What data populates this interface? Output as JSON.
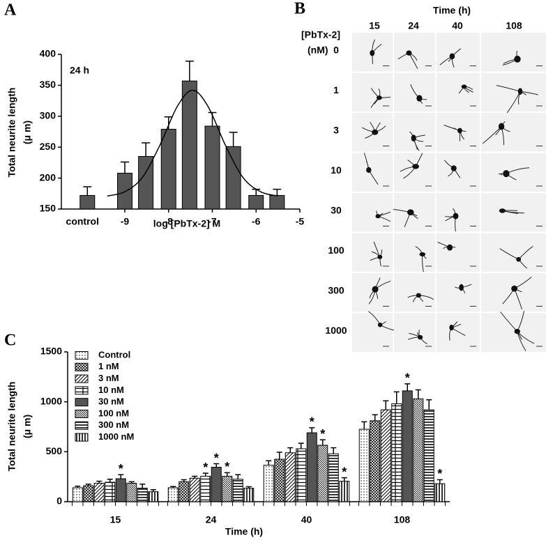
{
  "panel_labels": {
    "a": "A",
    "b": "B",
    "c": "C"
  },
  "image_grid": {
    "column_title": "Time (h)",
    "columns": [
      "15",
      "24",
      "40",
      "108"
    ],
    "row_title": [
      "[PbTx-2]",
      "(nM)"
    ],
    "rows": [
      "0",
      "1",
      "3",
      "10",
      "30",
      "100",
      "300",
      "1000"
    ]
  },
  "chart_data": [
    {
      "type": "bar",
      "annotation": "24 h",
      "ylabel": [
        "Total neurite length",
        "(μ m)"
      ],
      "xlabel": "log [PbTx-2] M",
      "control": {
        "label": "control",
        "value": 172,
        "error": 14
      },
      "x": [
        -9,
        -8.52,
        -8,
        -7.52,
        -7,
        -6.52,
        -6,
        -5.52
      ],
      "values": [
        208,
        235,
        279,
        357,
        284,
        251,
        172,
        172
      ],
      "errors": [
        18,
        22,
        20,
        32,
        22,
        23,
        10,
        10
      ],
      "color": "#555555",
      "fit": {
        "x": [
          -9.4,
          -9,
          -8.6,
          -8.2,
          -7.8,
          -7.45,
          -7.1,
          -6.7,
          -6.3,
          -5.9,
          -5.5
        ],
        "y": [
          171,
          178,
          201,
          253,
          316,
          342,
          316,
          253,
          201,
          178,
          171
        ]
      },
      "xlim": [
        -10.45,
        -5
      ],
      "xticks": [
        -9,
        -8,
        -7,
        -6,
        -5
      ],
      "ylim": [
        150,
        400
      ],
      "yticks": [
        150,
        200,
        250,
        300,
        350,
        400
      ]
    },
    {
      "type": "grouped-bar",
      "ylabel": [
        "Total neurite length",
        "(μ m)"
      ],
      "xlabel": "Time (h)",
      "categories": [
        "15",
        "24",
        "40",
        "108"
      ],
      "series": [
        {
          "name": "Control",
          "color": "#000000",
          "pattern": "dots",
          "values": [
            140,
            140,
            365,
            725
          ],
          "errors": [
            15,
            12,
            45,
            75
          ],
          "significance": [
            null,
            null,
            null,
            null
          ]
        },
        {
          "name": "1 nM",
          "color": "#000000",
          "pattern": "crosshatch",
          "values": [
            160,
            200,
            425,
            810
          ],
          "errors": [
            15,
            20,
            70,
            60
          ],
          "significance": [
            null,
            null,
            null,
            null
          ]
        },
        {
          "name": "3 nM",
          "color": "#000000",
          "pattern": "diagonal",
          "values": [
            185,
            235,
            490,
            920
          ],
          "errors": [
            20,
            20,
            50,
            90
          ],
          "significance": [
            null,
            null,
            null,
            null
          ]
        },
        {
          "name": "10 nM",
          "color": "#000000",
          "pattern": "grid",
          "values": [
            195,
            255,
            530,
            980
          ],
          "errors": [
            30,
            30,
            55,
            120
          ],
          "significance": [
            null,
            "*",
            null,
            null
          ]
        },
        {
          "name": "30 nM",
          "color": "#555555",
          "pattern": "solid",
          "values": [
            230,
            345,
            690,
            1110
          ],
          "errors": [
            40,
            35,
            50,
            70
          ],
          "significance": [
            "*",
            "*",
            "*",
            "*"
          ]
        },
        {
          "name": "100 nM",
          "color": "#000000",
          "pattern": "diagonal-dense",
          "values": [
            185,
            255,
            565,
            1030
          ],
          "errors": [
            15,
            35,
            55,
            90
          ],
          "significance": [
            null,
            "*",
            "*",
            null
          ]
        },
        {
          "name": "300 nM",
          "color": "#000000",
          "pattern": "horizontal",
          "values": [
            135,
            225,
            480,
            920
          ],
          "errors": [
            40,
            45,
            60,
            100
          ],
          "significance": [
            null,
            null,
            null,
            null
          ]
        },
        {
          "name": "1000 nM",
          "color": "#000000",
          "pattern": "vertical",
          "values": [
            100,
            135,
            205,
            180
          ],
          "errors": [
            20,
            15,
            35,
            40
          ],
          "significance": [
            null,
            null,
            "*",
            "*"
          ]
        }
      ],
      "ylim": [
        0,
        1500
      ],
      "yticks": [
        0,
        500,
        1000,
        1500
      ]
    }
  ]
}
